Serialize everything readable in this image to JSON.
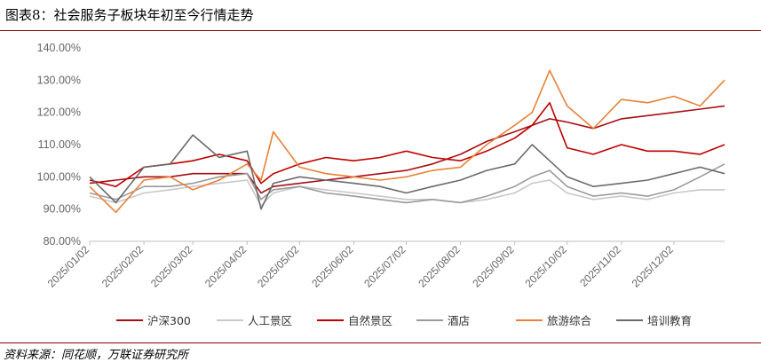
{
  "figure": {
    "title": "图表8：社会服务子板块年初至今行情走势",
    "source": "资料来源：同花顺，万联证券研究所"
  },
  "chart_data": {
    "type": "line",
    "title": "",
    "xlabel": "",
    "ylabel": "",
    "ylim": [
      80,
      140
    ],
    "y_ticks": [
      "80.00%",
      "90.00%",
      "100.00%",
      "110.00%",
      "120.00%",
      "130.00%",
      "140.00%"
    ],
    "x_ticks": [
      "2025/01/02",
      "2025/02/02",
      "2025/03/02",
      "2025/04/02",
      "2025/05/02",
      "2025/06/02",
      "2025/07/02",
      "2025/08/02",
      "2025/09/02",
      "2025/10/02",
      "2025/11/02",
      "2025/12/02"
    ],
    "grid": false,
    "legend_position": "bottom",
    "x": [
      "2025/01/02",
      "2025/01/17",
      "2025/02/02",
      "2025/02/17",
      "2025/03/02",
      "2025/03/17",
      "2025/04/02",
      "2025/04/10",
      "2025/04/17",
      "2025/05/02",
      "2025/05/17",
      "2025/06/02",
      "2025/06/17",
      "2025/07/02",
      "2025/07/17",
      "2025/08/02",
      "2025/08/17",
      "2025/09/02",
      "2025/09/12",
      "2025/09/22",
      "2025/10/02",
      "2025/10/17",
      "2025/11/02",
      "2025/11/17",
      "2025/12/02",
      "2025/12/17",
      "2025/12/31"
    ],
    "series": [
      {
        "name": "沪深300",
        "color": "#a50f15",
        "values": [
          98,
          99,
          100,
          100,
          101,
          101,
          101,
          95,
          97,
          98,
          99,
          100,
          101,
          102,
          104,
          107,
          111,
          114,
          116,
          118,
          117,
          115,
          118,
          119,
          120,
          121,
          122
        ]
      },
      {
        "name": "人工景区",
        "color": "#c8c8c8",
        "values": [
          94,
          92,
          95,
          96,
          97,
          98,
          99,
          91,
          95,
          97,
          96,
          95,
          94,
          93,
          93,
          92,
          93,
          95,
          98,
          99,
          95,
          93,
          94,
          93,
          95,
          96,
          96
        ]
      },
      {
        "name": "自然景区",
        "color": "#c00000",
        "values": [
          99,
          97,
          103,
          104,
          105,
          107,
          105,
          98,
          101,
          104,
          106,
          105,
          106,
          108,
          106,
          105,
          108,
          112,
          116,
          123,
          109,
          107,
          110,
          108,
          108,
          107,
          110
        ]
      },
      {
        "name": "酒店",
        "color": "#9a9a9a",
        "values": [
          95,
          93,
          97,
          97,
          98,
          100,
          101,
          93,
          96,
          97,
          95,
          94,
          93,
          92,
          93,
          92,
          94,
          97,
          100,
          102,
          97,
          94,
          95,
          94,
          96,
          100,
          104
        ]
      },
      {
        "name": "旅游综合",
        "color": "#e8823a",
        "values": [
          97,
          89,
          99,
          100,
          96,
          99,
          104,
          99,
          114,
          103,
          101,
          100,
          99,
          100,
          102,
          103,
          110,
          116,
          120,
          133,
          122,
          115,
          124,
          123,
          125,
          122,
          130
        ]
      },
      {
        "name": "培训教育",
        "color": "#6b6b6b",
        "values": [
          100,
          92,
          103,
          104,
          113,
          106,
          108,
          90,
          98,
          100,
          99,
          98,
          97,
          95,
          97,
          99,
          102,
          104,
          110,
          105,
          100,
          97,
          98,
          99,
          101,
          103,
          101
        ]
      }
    ]
  }
}
